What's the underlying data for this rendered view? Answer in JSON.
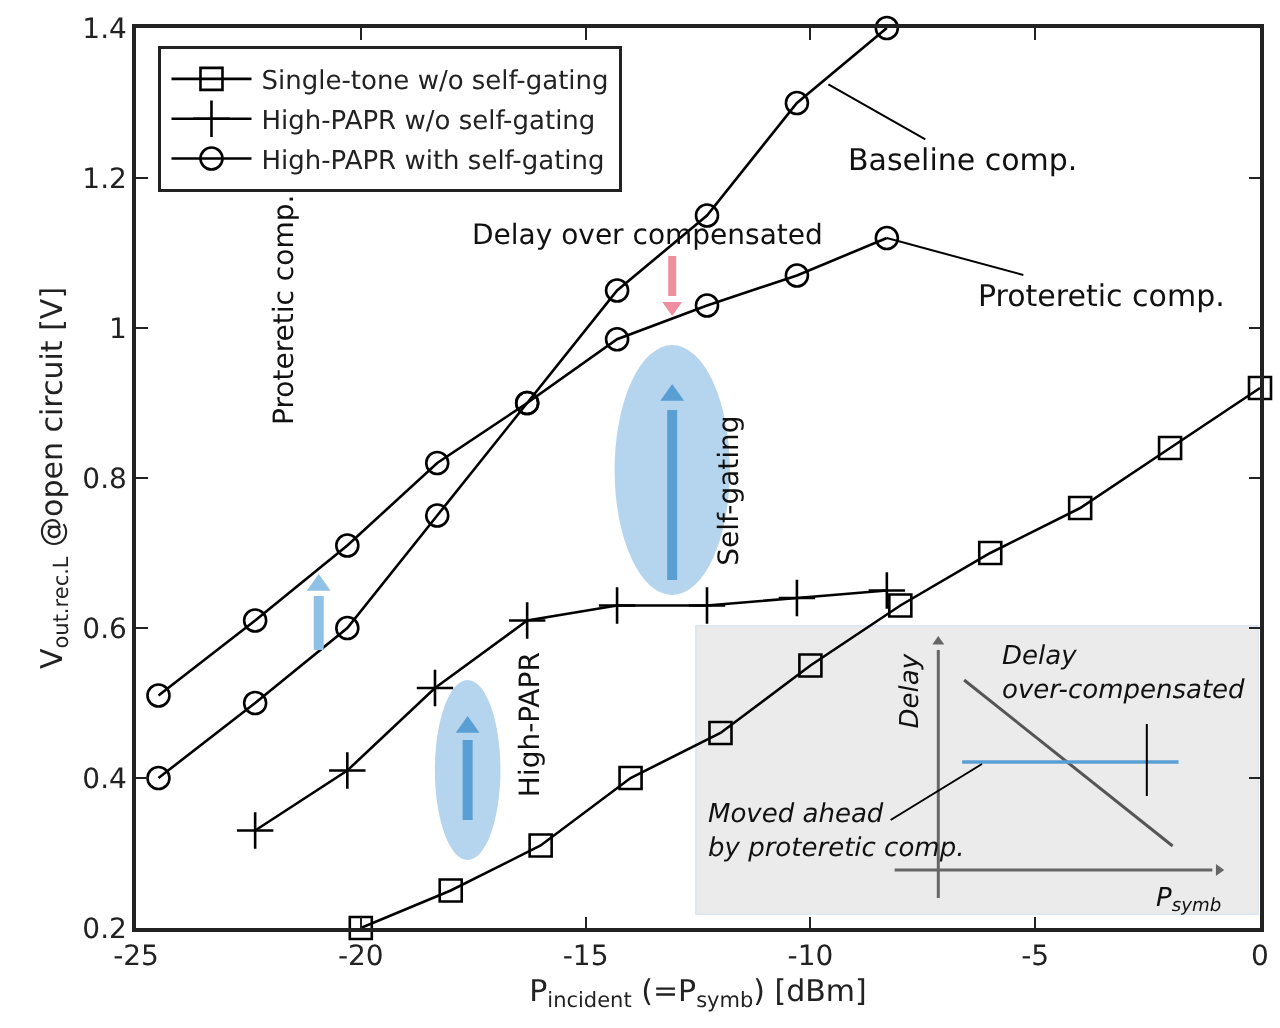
{
  "chart_data": {
    "type": "line",
    "xlabel": "P$_{incident}$ (=P$_{symb}$) [dBm]",
    "ylabel": "V$_{out.rec.L}$ @open circuit [V]",
    "xlim": [
      -25,
      0
    ],
    "xticks": [
      -25,
      -20,
      -15,
      -10,
      -5,
      0
    ],
    "ylim": [
      0.2,
      1.4
    ],
    "yticks": [
      0.2,
      0.4,
      0.6,
      0.8,
      1,
      1.2,
      1.4
    ],
    "grid": false,
    "legend": "top left",
    "line_style": "solid",
    "series": [
      {
        "name": "Single-tone w/o self-gating",
        "color": "#000000",
        "marker": "square",
        "x": [
          -20,
          -18,
          -16,
          -14,
          -12,
          -10,
          -8,
          -6,
          -4,
          -2,
          0
        ],
        "values": [
          0.2,
          0.25,
          0.31,
          0.4,
          0.46,
          0.55,
          0.63,
          0.7,
          0.76,
          0.84,
          0.92
        ]
      },
      {
        "name": "High-PAPR w/o self-gating",
        "color": "#000000",
        "marker": "cross",
        "x": [
          -22.35,
          -20.3,
          -18.35,
          -16.3,
          -14.3,
          -12.3,
          -10.3,
          -8.3
        ],
        "values": [
          0.33,
          0.41,
          0.52,
          0.61,
          0.63,
          0.63,
          0.64,
          0.65
        ]
      },
      {
        "name": "High-PAPR with self-gating",
        "color": "#000000",
        "marker": "circle",
        "x": [
          -24.5,
          -22.35,
          -20.3,
          -18.3,
          -16.3,
          -14.3,
          -12.3,
          -10.3,
          -8.3
        ],
        "values": [
          0.51,
          0.61,
          0.71,
          0.82,
          0.9,
          1.05,
          1.15,
          1.3,
          1.4
        ]
      },
      {
        "color": "#000000",
        "marker": "circle",
        "x": [
          -24.5,
          -22.35,
          -20.3,
          -18.3,
          -16.3,
          -14.3,
          -12.3,
          -10.3,
          -8.3
        ],
        "values": [
          0.4,
          0.5,
          0.6,
          0.75,
          0.9,
          0.985,
          1.03,
          1.07,
          1.12
        ]
      }
    ],
    "annotations": [
      {
        "text": "Baseline comp.",
        "x": -9.6,
        "y": 1.325
      },
      {
        "text": "Proteretic comp.",
        "x": -8.3,
        "y": 1.12
      },
      "Delay over compensated",
      "Proteretic comp.",
      "Self-gating",
      "High-PAPR",
      "Delay",
      "Delay\nover-compensated",
      "Moved ahead\nby proteretic comp.",
      "P$_{symb}$"
    ]
  }
}
